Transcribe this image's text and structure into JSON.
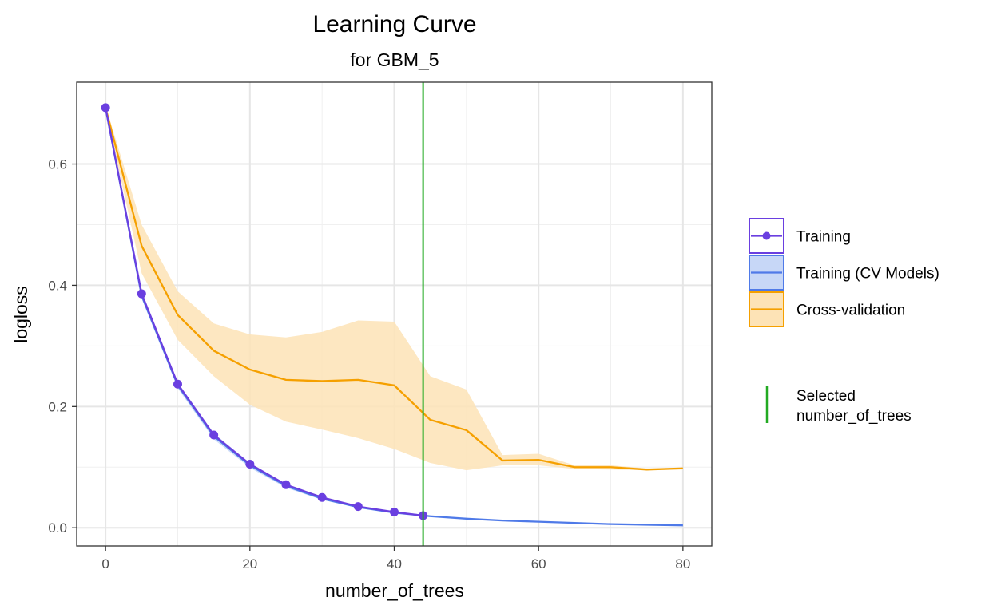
{
  "chart_data": {
    "type": "line",
    "title": "Learning Curve",
    "subtitle": "for GBM_5",
    "xlabel": "number_of_trees",
    "ylabel": "logloss",
    "xlim": [
      -4,
      84
    ],
    "ylim": [
      -0.03,
      0.735
    ],
    "x_ticks": [
      0,
      20,
      40,
      60,
      80
    ],
    "y_ticks": [
      0.0,
      0.2,
      0.4,
      0.6
    ],
    "x_tick_labels": [
      "0",
      "20",
      "40",
      "60",
      "80"
    ],
    "y_tick_labels": [
      "0.0",
      "0.2",
      "0.4",
      "0.6"
    ],
    "grid": true,
    "legend_position": "right",
    "selected_number_of_trees": 44,
    "series": [
      {
        "name": "Training",
        "color": "#6a3fe0",
        "markers": true,
        "x": [
          0,
          5,
          10,
          15,
          20,
          25,
          30,
          35,
          40,
          44
        ],
        "y": [
          0.693,
          0.386,
          0.237,
          0.153,
          0.105,
          0.071,
          0.05,
          0.035,
          0.026,
          0.02
        ]
      },
      {
        "name": "Training (CV Models)",
        "color": "#4f7ae8",
        "band_color": "#c7d7f7",
        "markers": false,
        "x": [
          0,
          5,
          10,
          15,
          20,
          25,
          30,
          35,
          40,
          45,
          50,
          55,
          60,
          65,
          70,
          75,
          80
        ],
        "y": [
          0.693,
          0.383,
          0.235,
          0.151,
          0.103,
          0.069,
          0.048,
          0.034,
          0.025,
          0.019,
          0.015,
          0.012,
          0.01,
          0.008,
          0.006,
          0.005,
          0.004
        ],
        "lower": [
          0.69,
          0.378,
          0.23,
          0.146,
          0.099,
          0.066,
          0.046,
          0.033,
          0.024,
          0.018,
          0.014,
          0.011,
          0.009,
          0.007,
          0.005,
          0.004,
          0.003
        ],
        "upper": [
          0.696,
          0.388,
          0.24,
          0.156,
          0.107,
          0.072,
          0.05,
          0.036,
          0.026,
          0.02,
          0.016,
          0.013,
          0.011,
          0.009,
          0.007,
          0.006,
          0.005
        ]
      },
      {
        "name": "Cross-validation",
        "color": "#f5a000",
        "band_color": "#fde3b6",
        "markers": false,
        "x": [
          0,
          5,
          10,
          15,
          20,
          25,
          30,
          35,
          40,
          45,
          50,
          55,
          60,
          65,
          70,
          75,
          80
        ],
        "y": [
          0.693,
          0.465,
          0.351,
          0.292,
          0.261,
          0.244,
          0.242,
          0.244,
          0.235,
          0.178,
          0.161,
          0.111,
          0.112,
          0.1,
          0.1,
          0.096,
          0.098
        ],
        "lower": [
          0.69,
          0.42,
          0.31,
          0.25,
          0.203,
          0.175,
          0.162,
          0.148,
          0.13,
          0.107,
          0.095,
          0.103,
          0.103,
          0.097,
          0.096,
          0.095,
          0.096
        ],
        "upper": [
          0.696,
          0.5,
          0.39,
          0.337,
          0.319,
          0.314,
          0.323,
          0.342,
          0.34,
          0.25,
          0.228,
          0.12,
          0.122,
          0.103,
          0.103,
          0.098,
          0.099
        ]
      }
    ],
    "legend": [
      {
        "label": "Training",
        "key": "point-line"
      },
      {
        "label": "Training (CV Models)",
        "key": "band-line"
      },
      {
        "label": "Cross-validation",
        "key": "band-line"
      }
    ],
    "selected_legend": {
      "line1": "Selected",
      "line2": "number_of_trees",
      "color": "#22aa22"
    }
  }
}
